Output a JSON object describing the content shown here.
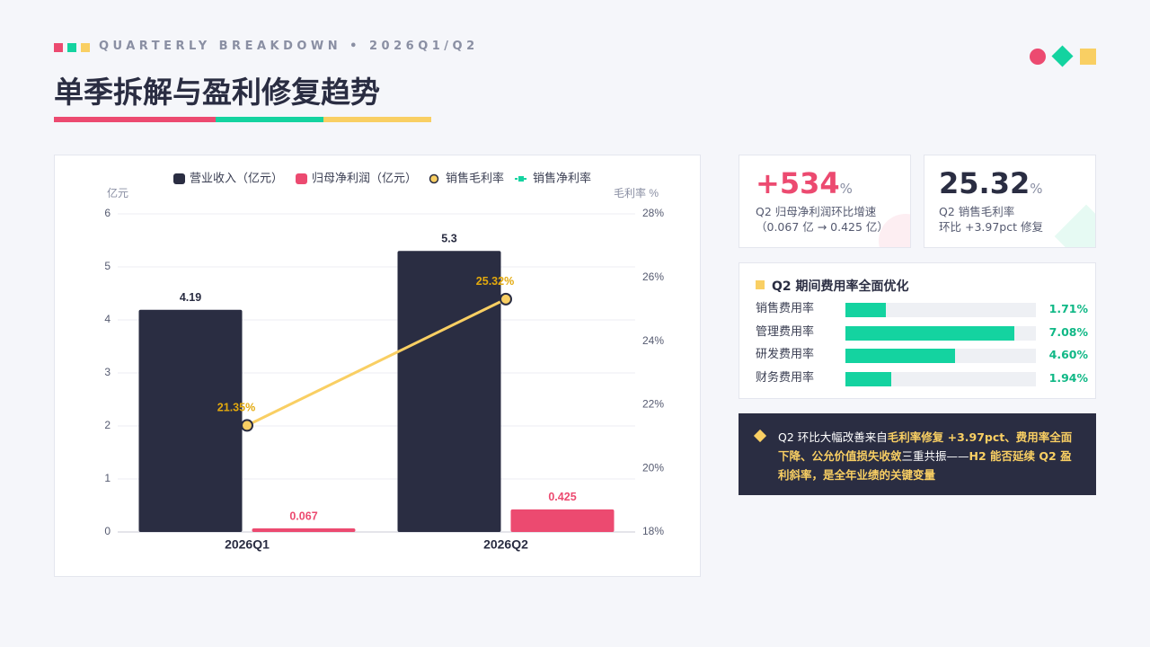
{
  "header": {
    "kicker": "QUARTERLY BREAKDOWN • 2026Q1/Q2",
    "title": "单季拆解与盈利修复趋势"
  },
  "chart_data": {
    "type": "bar",
    "categories": [
      "2026Q1",
      "2026Q2"
    ],
    "series": [
      {
        "name": "营业收入（亿元）",
        "color": "#2a2d42",
        "values": [
          4.19,
          5.3
        ]
      },
      {
        "name": "归母净利润（亿元）",
        "color": "#ec4a70",
        "values": [
          0.067,
          0.425
        ]
      },
      {
        "name": "销售毛利率",
        "color": "#f9cf63",
        "type": "line",
        "axis": "y2",
        "values": [
          21.35,
          25.32
        ],
        "value_labels": [
          "21.35%",
          "25.32%"
        ]
      },
      {
        "name": "销售净利率",
        "color": "#14d3a0",
        "type": "line",
        "axis": "y2",
        "values": [
          null,
          null
        ]
      }
    ],
    "ylabel": "亿元",
    "y2label": "毛利率 %",
    "ylim": [
      0,
      6
    ],
    "yticks": [
      0,
      1,
      2,
      3,
      4,
      5,
      6
    ],
    "y2lim": [
      18,
      28
    ],
    "y2ticks": [
      {
        "value": 18,
        "label": "18%"
      },
      {
        "value": 20,
        "label": "20%"
      },
      {
        "value": 22,
        "label": "22%"
      },
      {
        "value": 24,
        "label": "24%"
      },
      {
        "value": 26,
        "label": "26%"
      },
      {
        "value": 28,
        "label": "28%"
      }
    ],
    "grid": true,
    "legend": "top"
  },
  "kpis": [
    {
      "value": "+534",
      "unit": "%",
      "label": "Q2 归母净利润环比增速",
      "sub": "（0.067 亿 → 0.425 亿）",
      "color": "#ec4a70"
    },
    {
      "value": "25.32",
      "unit": "%",
      "label": "Q2 销售毛利率",
      "sub": "环比 +3.97pct 修复",
      "color": "#2a2d42"
    }
  ],
  "expenses": {
    "title": "Q2 期间费用率全面优化",
    "categories": [
      "销售费用率",
      "管理费用率",
      "研发费用率",
      "财务费用率"
    ],
    "values": [
      1.71,
      7.08,
      4.6,
      1.94
    ],
    "value_labels": [
      "1.71%",
      "7.08%",
      "4.60%",
      "1.94%"
    ],
    "xlim": [
      0,
      8
    ],
    "color": "#14d3a0"
  },
  "note": {
    "segments": [
      {
        "text": "Q2 环比大幅改善来自",
        "hl": false
      },
      {
        "text": "毛利率修复 +3.97pct、费用率全面下降、公允价值损失收敛",
        "hl": true
      },
      {
        "text": "三重共振——",
        "hl": false
      },
      {
        "text": "H2 能否延续 Q2 盈利斜率，是全年业绩的关键变量",
        "hl": true
      }
    ]
  }
}
